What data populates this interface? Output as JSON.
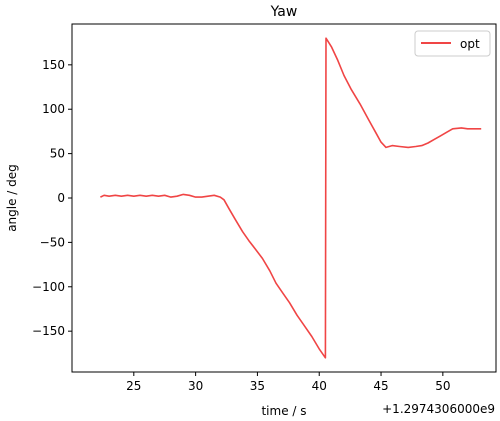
{
  "chart_data": {
    "type": "line",
    "title": "Yaw",
    "xlabel": "time / s",
    "ylabel": "angle / deg",
    "x_offset_label": "+1.2974306000e9",
    "xlim": [
      20.0,
      54.3
    ],
    "ylim": [
      -196,
      196
    ],
    "xticks": [
      25,
      30,
      35,
      40,
      45,
      50
    ],
    "yticks": [
      -150,
      -100,
      -50,
      0,
      50,
      100,
      150
    ],
    "xtick_labels": [
      "25",
      "30",
      "35",
      "40",
      "45",
      "50"
    ],
    "ytick_labels": [
      "−150",
      "−100",
      "−50",
      "0",
      "50",
      "100",
      "150"
    ],
    "legend": {
      "position": "top-right",
      "entries": [
        "opt"
      ]
    },
    "series": [
      {
        "name": "opt",
        "color": "#f04545",
        "x": [
          22.3,
          22.6,
          23.0,
          23.5,
          24.0,
          24.5,
          25.0,
          25.5,
          26.0,
          26.5,
          27.0,
          27.5,
          28.0,
          28.5,
          29.0,
          29.5,
          30.0,
          30.5,
          31.0,
          31.5,
          32.0,
          32.3,
          32.7,
          33.2,
          33.8,
          34.3,
          34.8,
          35.4,
          36.0,
          36.5,
          37.1,
          37.6,
          38.2,
          38.8,
          39.4,
          40.0,
          40.5,
          40.55,
          41.0,
          41.5,
          42.0,
          42.6,
          43.3,
          44.0,
          44.6,
          45.0,
          45.4,
          45.9,
          46.5,
          47.2,
          47.8,
          48.3,
          48.8,
          49.3,
          49.8,
          50.3,
          50.8,
          51.5,
          52.0,
          52.5,
          53.1
        ],
        "y": [
          1,
          3,
          2,
          3,
          2,
          3,
          2,
          3,
          2,
          3,
          2,
          3,
          1,
          2,
          4,
          3,
          1,
          1,
          2,
          3,
          1,
          -2,
          -12,
          -24,
          -38,
          -48,
          -57,
          -68,
          -82,
          -96,
          -108,
          -118,
          -132,
          -144,
          -156,
          -170,
          -180,
          180,
          170,
          155,
          138,
          122,
          106,
          88,
          73,
          63,
          57,
          59,
          58,
          57,
          58,
          59,
          62,
          66,
          70,
          74,
          78,
          79,
          78,
          78,
          78
        ]
      }
    ]
  }
}
